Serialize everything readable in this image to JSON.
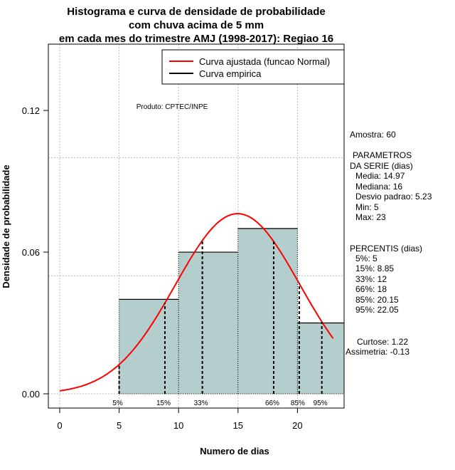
{
  "chart_data": {
    "type": "bar",
    "title": [
      "Histograma e curva de densidade de probabilidade",
      "com chuva acima de 5 mm",
      "em cada mes do trimestre AMJ (1998-2017): Regiao 16"
    ],
    "xlabel": "Numero de dias",
    "ylabel": "Densidade de probabilidade",
    "xlim": [
      -1,
      24
    ],
    "ylim": [
      -0.006,
      0.148
    ],
    "xticks": [
      0,
      5,
      10,
      15,
      20
    ],
    "yticks": [
      0.0,
      0.06,
      0.12
    ],
    "ytick_labels": [
      "0.00",
      "0.06",
      "0.12"
    ],
    "grid_x": [
      0,
      5,
      10,
      15,
      20
    ],
    "grid_y": [
      0,
      0.05,
      0.1
    ],
    "bins": [
      [
        5,
        10
      ],
      [
        10,
        15
      ],
      [
        15,
        20
      ],
      [
        20,
        25
      ]
    ],
    "values": [
      0.04,
      0.06,
      0.07,
      0.03
    ],
    "bar_color": "#b4cdcd",
    "curve": {
      "type": "normal",
      "mean": 14.97,
      "sd": 5.23,
      "x_range": [
        0,
        23
      ],
      "color": "#ff0000"
    },
    "percentiles": [
      {
        "label": "5%",
        "value": 5
      },
      {
        "label": "15%",
        "value": 8.85
      },
      {
        "label": "33%",
        "value": 12
      },
      {
        "label": "66%",
        "value": 18
      },
      {
        "label": "85%",
        "value": 20.15
      },
      {
        "label": "95%",
        "value": 22.05
      }
    ],
    "legend": {
      "placement": "top-right",
      "entries": [
        {
          "label": "Curva ajustada (funcao Normal)",
          "color": "#ff0000"
        },
        {
          "label": "Curva empirica",
          "color": "#000000"
        }
      ]
    },
    "annotation": "Produto: CPTEC/INPE"
  },
  "side_panel": {
    "amostra": "Amostra: 60",
    "params_title1": "PARAMETROS",
    "params_title2": "DA SERIE (dias)",
    "params": [
      "Media: 14.97",
      "Mediana: 16",
      "Desvio padrao: 5.23",
      "Min: 5",
      "Max: 23"
    ],
    "perc_title": "PERCENTIS (dias)",
    "percs": [
      "5%: 5",
      "15%: 8.85",
      "33%: 12",
      "66%: 18",
      "85%: 20.15",
      "95%: 22.05"
    ],
    "curtose": "Curtose: 1.22",
    "assimetria": "Assimetria: -0.13"
  }
}
